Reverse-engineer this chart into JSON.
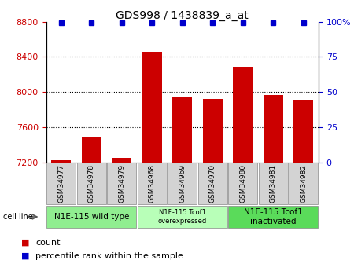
{
  "title": "GDS998 / 1438839_a_at",
  "samples": [
    "GSM34977",
    "GSM34978",
    "GSM34979",
    "GSM34968",
    "GSM34969",
    "GSM34970",
    "GSM34980",
    "GSM34981",
    "GSM34982"
  ],
  "counts": [
    7230,
    7490,
    7250,
    8460,
    7940,
    7920,
    8290,
    7970,
    7910
  ],
  "percentiles": [
    99,
    99,
    99,
    99,
    99,
    99,
    99,
    99,
    99
  ],
  "ylim_left": [
    7200,
    8800
  ],
  "ylim_right": [
    0,
    100
  ],
  "yticks_left": [
    7200,
    7600,
    8000,
    8400,
    8800
  ],
  "yticks_right": [
    0,
    25,
    50,
    75,
    100
  ],
  "bar_color": "#cc0000",
  "dot_color": "#0000cc",
  "groups": [
    {
      "label": "N1E-115 wild type",
      "start": 0,
      "end": 3,
      "color": "#90ee90",
      "small": false
    },
    {
      "label": "N1E-115 Tcof1\noverexpressed",
      "start": 3,
      "end": 6,
      "color": "#b8ffb8",
      "small": true
    },
    {
      "label": "N1E-115 Tcof1\ninactivated",
      "start": 6,
      "end": 9,
      "color": "#5adb5a",
      "small": false
    }
  ],
  "cell_line_label": "cell line",
  "legend_count_label": "count",
  "legend_percentile_label": "percentile rank within the sample",
  "grid_color": "#000000",
  "tick_bg_color": "#d3d3d3",
  "left_axis_color": "#cc0000",
  "right_axis_color": "#0000cc",
  "bg_color": "#ffffff"
}
